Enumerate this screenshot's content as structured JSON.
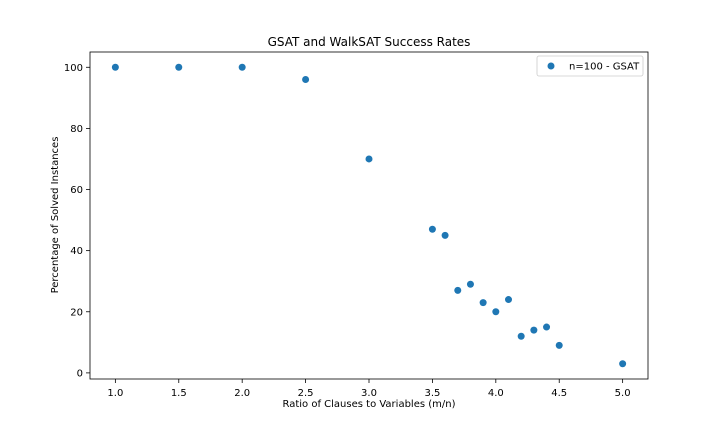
{
  "chart_data": {
    "type": "scatter",
    "title": "GSAT and WalkSAT Success Rates",
    "xlabel": "Ratio of Clauses to Variables (m/n)",
    "ylabel": "Percentage of Solved Instances",
    "xlim": [
      0.8,
      5.2
    ],
    "ylim": [
      -2,
      105
    ],
    "xticks": [
      "1.0",
      "1.5",
      "2.0",
      "2.5",
      "3.0",
      "3.5",
      "4.0",
      "4.5",
      "5.0"
    ],
    "yticks": [
      "0",
      "20",
      "40",
      "60",
      "80",
      "100"
    ],
    "grid": false,
    "legend_position": "top-right",
    "series": [
      {
        "name": "n=100 - GSAT",
        "color": "#1f77b4",
        "points": [
          {
            "x": 1.0,
            "y": 100
          },
          {
            "x": 1.5,
            "y": 100
          },
          {
            "x": 2.0,
            "y": 100
          },
          {
            "x": 2.5,
            "y": 96
          },
          {
            "x": 3.0,
            "y": 70
          },
          {
            "x": 3.5,
            "y": 47
          },
          {
            "x": 3.6,
            "y": 45
          },
          {
            "x": 3.7,
            "y": 27
          },
          {
            "x": 3.8,
            "y": 29
          },
          {
            "x": 3.9,
            "y": 23
          },
          {
            "x": 4.0,
            "y": 20
          },
          {
            "x": 4.1,
            "y": 24
          },
          {
            "x": 4.2,
            "y": 12
          },
          {
            "x": 4.3,
            "y": 14
          },
          {
            "x": 4.4,
            "y": 15
          },
          {
            "x": 4.5,
            "y": 9
          },
          {
            "x": 5.0,
            "y": 3
          }
        ]
      }
    ]
  }
}
